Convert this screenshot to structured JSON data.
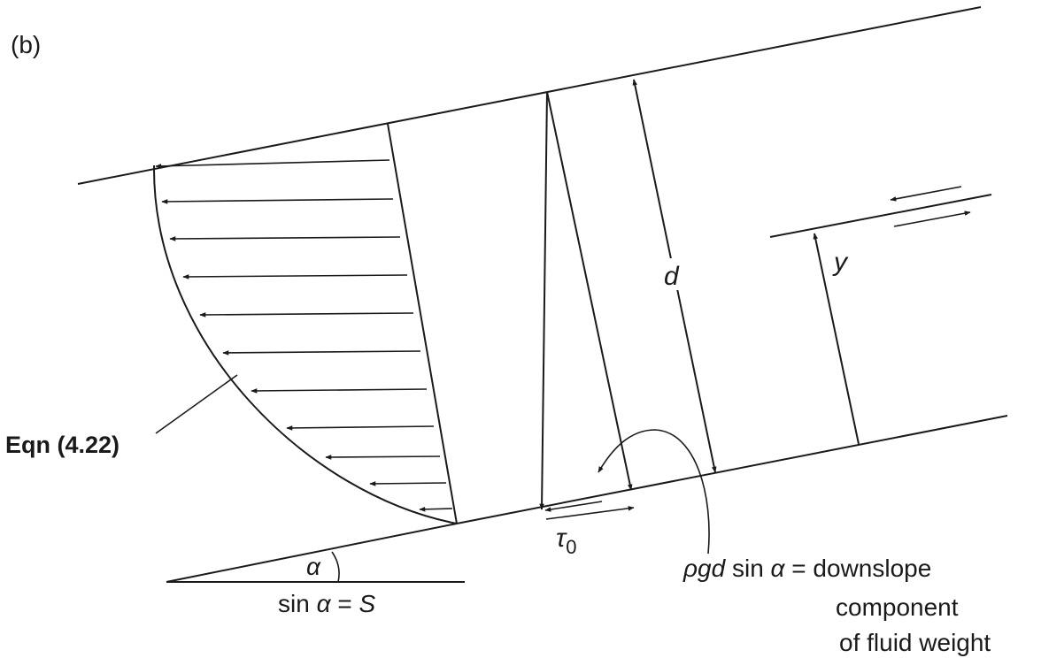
{
  "panel_label": "(b)",
  "labels": {
    "depth": "d",
    "height": "y",
    "equation_ref": "Eqn (4.22)",
    "bed_shear": "τ",
    "bed_shear_subscript": "0",
    "angle": "α",
    "slope_relation": {
      "prefix": "sin ",
      "symbol": "α",
      "suffix": " = ",
      "value": "S"
    },
    "weight_component": {
      "prefix": "ρgd",
      "mid": " sin ",
      "symbol": "α",
      "suffix": " = downslope",
      "line2": "component",
      "line3": "of fluid weight"
    }
  },
  "colors": {
    "ink": "#1a1a1a",
    "background": "#ffffff"
  }
}
